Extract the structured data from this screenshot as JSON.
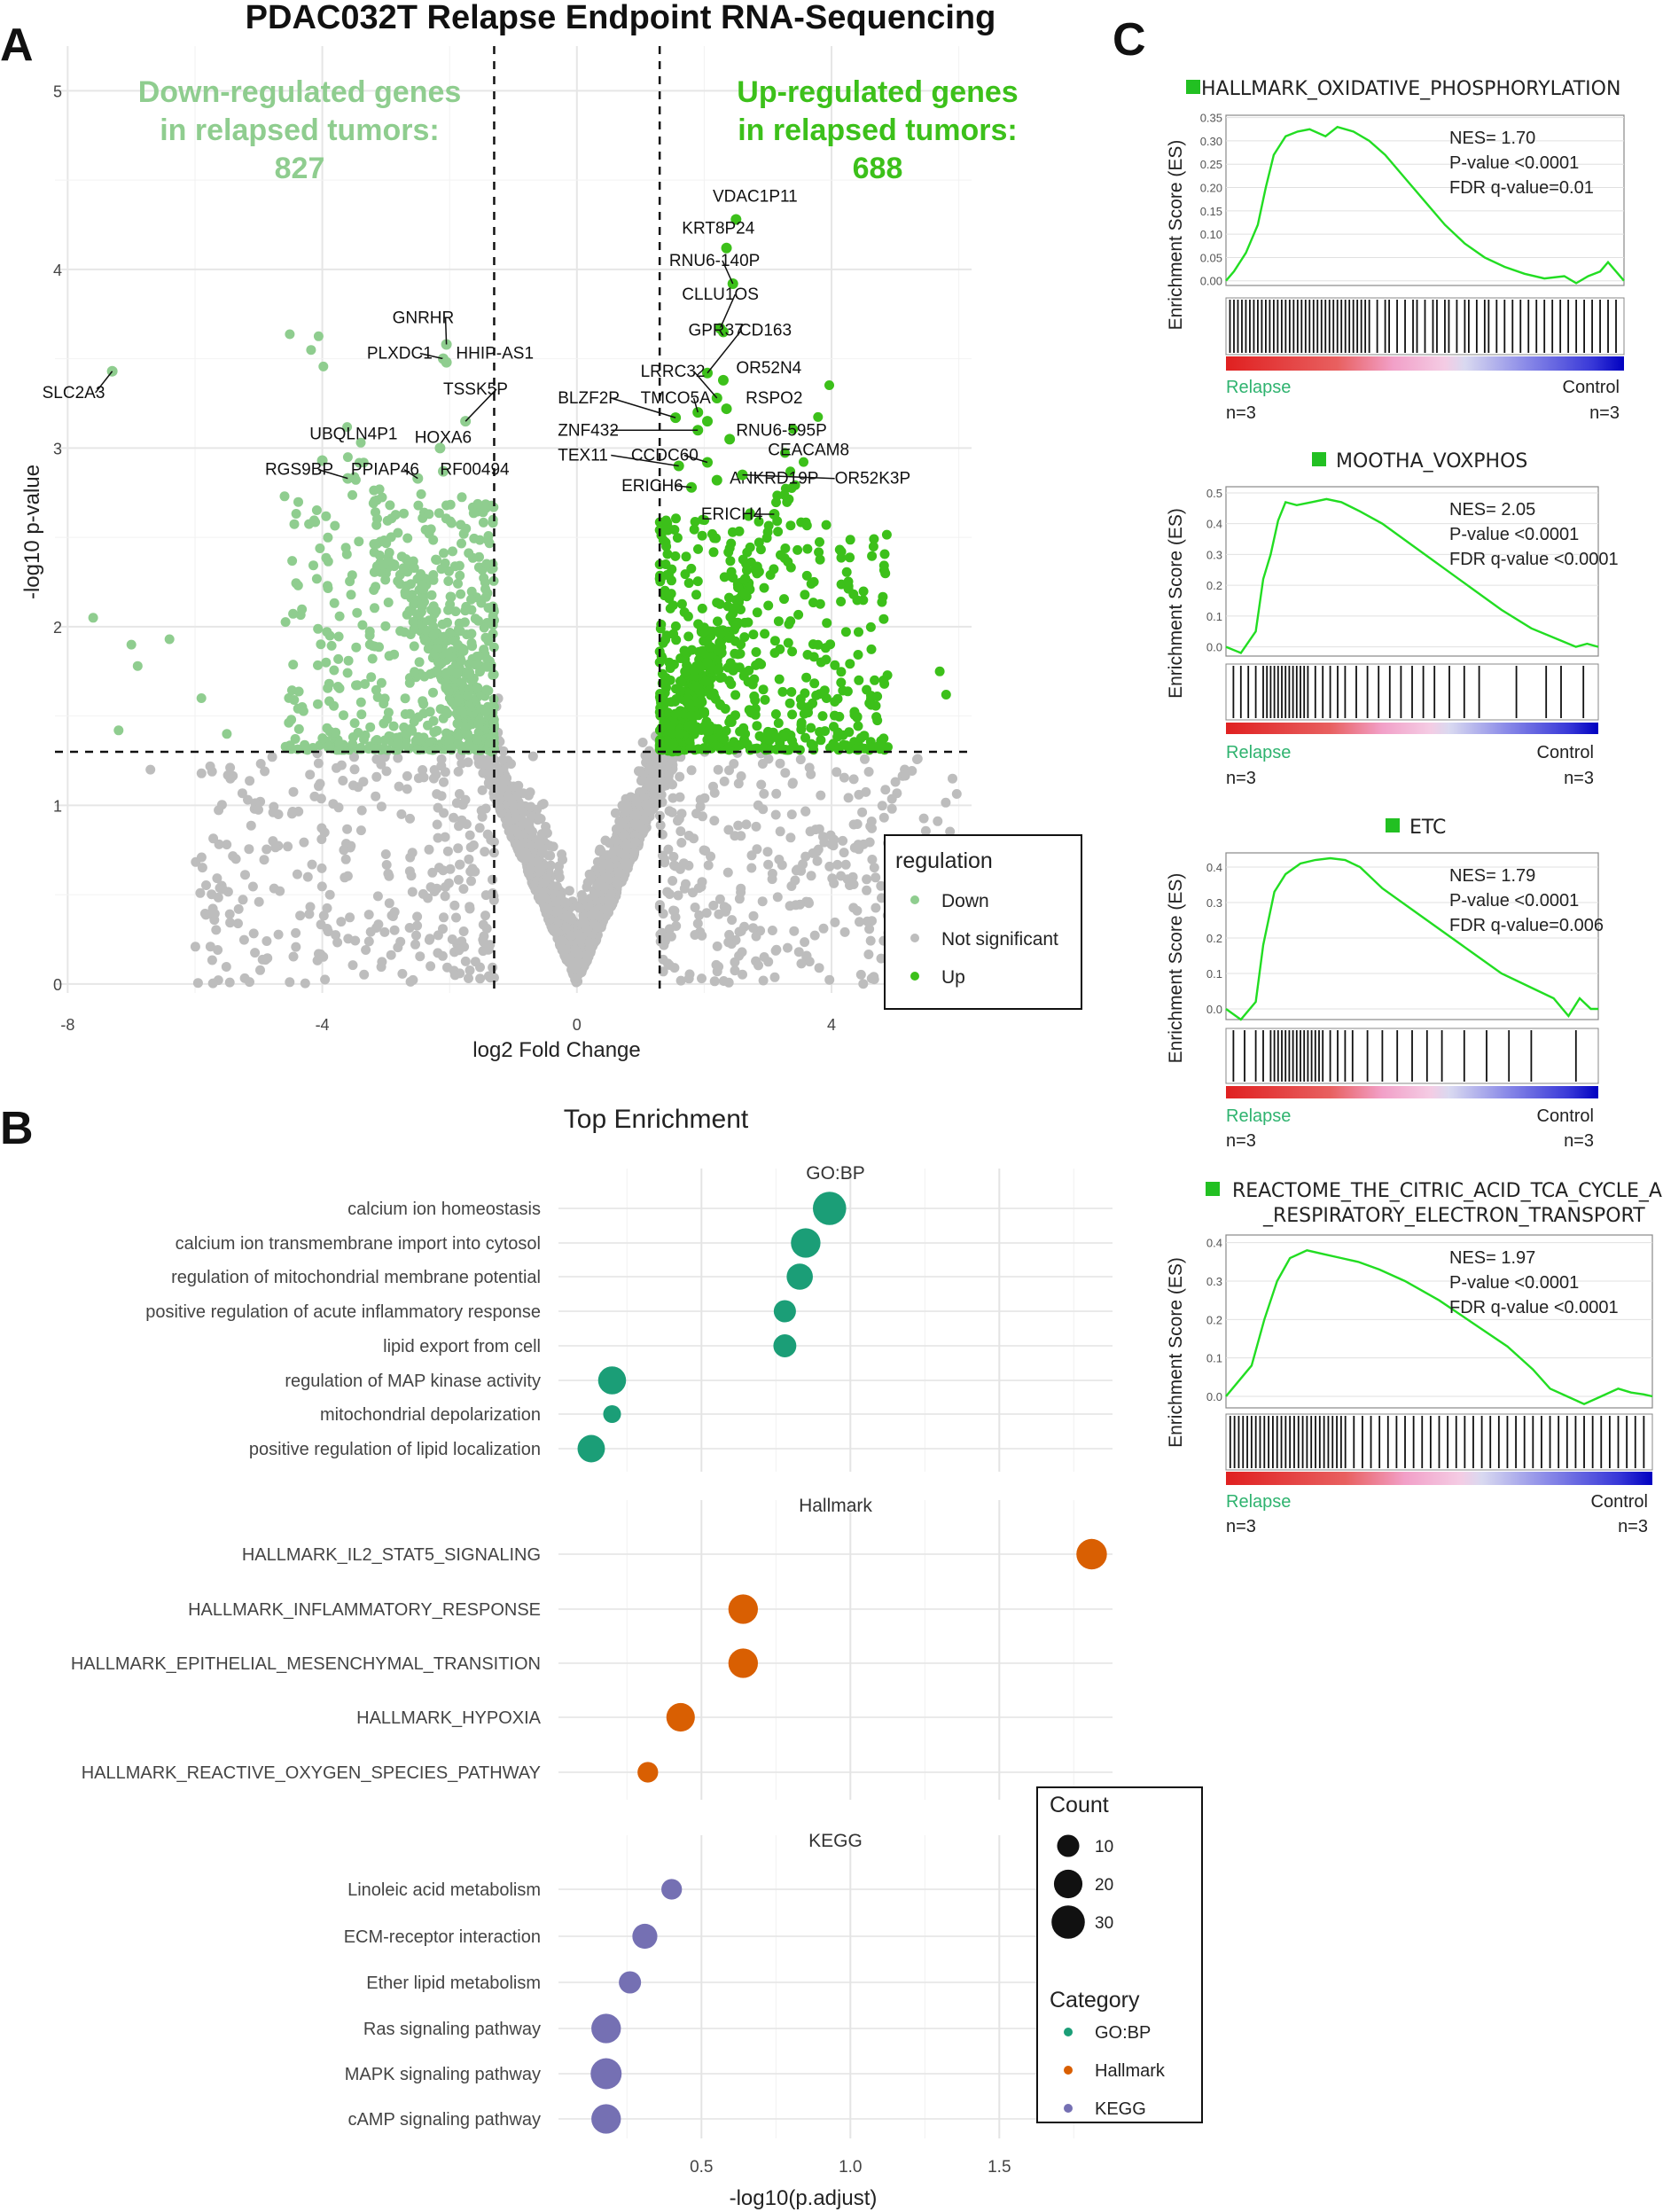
{
  "figure": {
    "main_title": "PDAC032T Relapse Endpoint RNA-Sequencing",
    "panel_labels": [
      "A",
      "B",
      "C"
    ]
  },
  "colors": {
    "down": "#8fcd8f",
    "up": "#3cc01a",
    "ns": "#bdbdbd",
    "gobp": "#1b9e77",
    "hallmark": "#d95f02",
    "kegg": "#7570b3",
    "gsea_curve": "#22dd22",
    "label_green": "#2fb36f"
  },
  "chart_data": [
    {
      "type": "scatter",
      "name": "volcano",
      "xlabel": "log2 Fold Change",
      "ylabel": "-log10 p-value",
      "xlim": [
        -8.2,
        6.2
      ],
      "ylim": [
        -0.05,
        5.25
      ],
      "xticks": [
        -8,
        -4,
        0,
        4
      ],
      "yticks": [
        0,
        1,
        2,
        3,
        4,
        5
      ],
      "thresholds": {
        "log2fc": [
          -1.3,
          1.3
        ],
        "neglog10p": 1.3
      },
      "annotation_down": {
        "line1": "Down-regulated genes",
        "line2": "in relapsed tumors:",
        "count": "827"
      },
      "annotation_up": {
        "line1": "Up-regulated genes",
        "line2": "in relapsed tumors:",
        "count": "688"
      },
      "legend": {
        "title": "regulation",
        "items": [
          {
            "label": "Down",
            "color": "#8fcd8f"
          },
          {
            "label": "Not significant",
            "color": "#bdbdbd"
          },
          {
            "label": "Up",
            "color": "#3cc01a"
          }
        ]
      },
      "labeled_genes": [
        {
          "gene": "VDAC1P11",
          "x": 2.5,
          "y": 4.28,
          "group": "up"
        },
        {
          "gene": "KRT8P24",
          "x": 2.35,
          "y": 4.12,
          "group": "up"
        },
        {
          "gene": "RNU6-140P",
          "x": 2.45,
          "y": 3.92,
          "group": "up"
        },
        {
          "gene": "CLLU1OS",
          "x": 2.25,
          "y": 3.67,
          "group": "up"
        },
        {
          "gene": "CD163",
          "x": 2.3,
          "y": 3.65,
          "group": "up"
        },
        {
          "gene": "GPR37",
          "x": 2.05,
          "y": 3.42,
          "group": "up"
        },
        {
          "gene": "OR52N4",
          "x": 2.3,
          "y": 3.38,
          "group": "up"
        },
        {
          "gene": "LRRC32",
          "x": 2.2,
          "y": 3.28,
          "group": "up"
        },
        {
          "gene": "RSPO2",
          "x": 2.35,
          "y": 3.22,
          "group": "up"
        },
        {
          "gene": "TMCO5A",
          "x": 1.9,
          "y": 3.2,
          "group": "up"
        },
        {
          "gene": "BLZF2P",
          "x": 1.55,
          "y": 3.17,
          "group": "up"
        },
        {
          "gene": "RNU6-595P",
          "x": 2.05,
          "y": 3.15,
          "group": "up"
        },
        {
          "gene": "ZNF432",
          "x": 1.9,
          "y": 3.1,
          "group": "up"
        },
        {
          "gene": "CEACAM8",
          "x": 2.4,
          "y": 3.05,
          "group": "up"
        },
        {
          "gene": "CCDC60",
          "x": 2.05,
          "y": 2.92,
          "group": "up"
        },
        {
          "gene": "TEX11",
          "x": 1.6,
          "y": 2.9,
          "group": "up"
        },
        {
          "gene": "ANKRD19P",
          "x": 2.2,
          "y": 2.82,
          "group": "up"
        },
        {
          "gene": "OR52K3P",
          "x": 2.6,
          "y": 2.85,
          "group": "up"
        },
        {
          "gene": "ERICH6",
          "x": 1.8,
          "y": 2.78,
          "group": "up"
        },
        {
          "gene": "ERICH4",
          "x": 3.1,
          "y": 2.63,
          "group": "up"
        },
        {
          "gene": "SLC2A3",
          "x": -7.3,
          "y": 3.43,
          "group": "down"
        },
        {
          "gene": "GNRHR",
          "x": -2.05,
          "y": 3.58,
          "group": "down"
        },
        {
          "gene": "PLXDC1",
          "x": -2.1,
          "y": 3.5,
          "group": "down"
        },
        {
          "gene": "HHIP-AS1",
          "x": -2.05,
          "y": 3.48,
          "group": "down"
        },
        {
          "gene": "TSSK5P",
          "x": -1.75,
          "y": 3.15,
          "group": "down"
        },
        {
          "gene": "HOXA6",
          "x": -2.15,
          "y": 3.0,
          "group": "down"
        },
        {
          "gene": "UBQLN4P1",
          "x": -4.0,
          "y": 2.93,
          "group": "down"
        },
        {
          "gene": "RF00494",
          "x": -2.1,
          "y": 2.87,
          "group": "down"
        },
        {
          "gene": "RGS9BP",
          "x": -3.6,
          "y": 2.83,
          "group": "down"
        },
        {
          "gene": "PPIAP46",
          "x": -2.5,
          "y": 2.83,
          "group": "down"
        }
      ]
    },
    {
      "type": "scatter",
      "name": "enrichment-dotplot",
      "title": "Top Enrichment",
      "xlabel": "-log10(p.adjust)",
      "xlim": [
        0.02,
        1.88
      ],
      "xticks": [
        0.5,
        1.0,
        1.5
      ],
      "xtick_labels": [
        "0.5",
        "1.0",
        "1.5"
      ],
      "groups": [
        {
          "facet": "GO:BP",
          "color_key": "gobp",
          "terms": [
            {
              "term": "calcium ion homeostasis",
              "x": 0.93,
              "count": 30
            },
            {
              "term": "calcium ion transmembrane import into cytosol",
              "x": 0.85,
              "count": 22
            },
            {
              "term": "regulation of mitochondrial membrane potential",
              "x": 0.83,
              "count": 16
            },
            {
              "term": "positive regulation of acute inflammatory response",
              "x": 0.78,
              "count": 10
            },
            {
              "term": "lipid export from cell",
              "x": 0.78,
              "count": 11
            },
            {
              "term": "regulation of MAP kinase activity",
              "x": 0.2,
              "count": 19
            },
            {
              "term": "mitochondrial depolarization",
              "x": 0.2,
              "count": 5
            },
            {
              "term": "positive regulation of lipid localization",
              "x": 0.13,
              "count": 18
            }
          ]
        },
        {
          "facet": "Hallmark",
          "color_key": "hallmark",
          "terms": [
            {
              "term": "HALLMARK_IL2_STAT5_SIGNALING",
              "x": 1.81,
              "count": 24
            },
            {
              "term": "HALLMARK_INFLAMMATORY_RESPONSE",
              "x": 0.64,
              "count": 22
            },
            {
              "term": "HALLMARK_EPITHELIAL_MESENCHYMAL_TRANSITION",
              "x": 0.64,
              "count": 22
            },
            {
              "term": "HALLMARK_HYPOXIA",
              "x": 0.43,
              "count": 20
            },
            {
              "term": "HALLMARK_REACTIVE_OXYGEN_SPECIES_PATHWAY",
              "x": 0.32,
              "count": 8
            }
          ]
        },
        {
          "facet": "KEGG",
          "color_key": "kegg",
          "terms": [
            {
              "term": "Linoleic acid metabolism",
              "x": 0.4,
              "count": 8
            },
            {
              "term": "ECM-receptor interaction",
              "x": 0.31,
              "count": 14
            },
            {
              "term": "Ether lipid metabolism",
              "x": 0.26,
              "count": 10
            },
            {
              "term": "Ras signaling pathway",
              "x": 0.18,
              "count": 22
            },
            {
              "term": "MAPK signaling pathway",
              "x": 0.18,
              "count": 25
            },
            {
              "term": "cAMP signaling pathway",
              "x": 0.18,
              "count": 22
            }
          ]
        }
      ],
      "size_legend": {
        "title": "Count",
        "items": [
          {
            "label": "10",
            "count": 10
          },
          {
            "label": "20",
            "count": 20
          },
          {
            "label": "30",
            "count": 30
          }
        ]
      },
      "color_legend": {
        "title": "Category",
        "items": [
          {
            "label": "GO:BP",
            "color_key": "gobp"
          },
          {
            "label": "Hallmark",
            "color_key": "hallmark"
          },
          {
            "label": "KEGG",
            "color_key": "kegg"
          }
        ]
      }
    },
    {
      "type": "line",
      "name": "gsea",
      "ylabel": "Enrichment Score (ES)",
      "group_left": "Relapse",
      "group_right": "Control",
      "n_left": "n=3",
      "n_right": "n=3",
      "panels": [
        {
          "title": "HALLMARK_OXIDATIVE_PHOSPHORYLATION",
          "nes": "NES= 1.70",
          "pvalue": "P-value <0.0001",
          "fdr": "FDR q-value=0.01",
          "ylim": [
            -0.01,
            0.355
          ],
          "yticks": [
            0.0,
            0.05,
            0.1,
            0.15,
            0.2,
            0.25,
            0.3,
            0.35
          ],
          "ytick_labels": [
            "0.00",
            "0.05",
            "0.10",
            "0.15",
            "0.20",
            "0.25",
            "0.30",
            "0.35"
          ],
          "es_x": [
            0,
            0.02,
            0.05,
            0.08,
            0.1,
            0.12,
            0.15,
            0.18,
            0.21,
            0.25,
            0.28,
            0.32,
            0.36,
            0.4,
            0.45,
            0.5,
            0.55,
            0.6,
            0.65,
            0.7,
            0.75,
            0.8,
            0.85,
            0.88,
            0.91,
            0.94,
            0.96,
            0.98,
            1.0
          ],
          "es_y": [
            0.0,
            0.02,
            0.06,
            0.12,
            0.2,
            0.27,
            0.31,
            0.32,
            0.325,
            0.31,
            0.33,
            0.32,
            0.3,
            0.27,
            0.22,
            0.17,
            0.12,
            0.08,
            0.05,
            0.03,
            0.015,
            0.005,
            0.01,
            -0.005,
            0.01,
            0.02,
            0.04,
            0.02,
            0.0
          ],
          "hits": [
            0.01,
            0.02,
            0.03,
            0.04,
            0.05,
            0.06,
            0.07,
            0.08,
            0.09,
            0.1,
            0.11,
            0.12,
            0.13,
            0.14,
            0.15,
            0.16,
            0.17,
            0.18,
            0.19,
            0.2,
            0.21,
            0.22,
            0.23,
            0.24,
            0.25,
            0.26,
            0.27,
            0.28,
            0.29,
            0.3,
            0.31,
            0.32,
            0.33,
            0.34,
            0.35,
            0.36,
            0.38,
            0.4,
            0.41,
            0.43,
            0.45,
            0.47,
            0.48,
            0.5,
            0.52,
            0.53,
            0.55,
            0.56,
            0.58,
            0.6,
            0.61,
            0.63,
            0.65,
            0.66,
            0.68,
            0.7,
            0.72,
            0.74,
            0.76,
            0.78,
            0.8,
            0.82,
            0.84,
            0.86,
            0.88,
            0.9,
            0.92,
            0.94,
            0.96,
            0.98
          ]
        },
        {
          "title": "MOOTHA_VOXPHOS",
          "nes": "NES= 2.05",
          "pvalue": "P-value <0.0001",
          "fdr": "FDR q-value <0.0001",
          "ylim": [
            -0.03,
            0.52
          ],
          "yticks": [
            0.0,
            0.1,
            0.2,
            0.3,
            0.4,
            0.5
          ],
          "ytick_labels": [
            "0.0",
            "0.1",
            "0.2",
            "0.3",
            "0.4",
            "0.5"
          ],
          "es_x": [
            0,
            0.04,
            0.08,
            0.1,
            0.12,
            0.14,
            0.16,
            0.19,
            0.23,
            0.27,
            0.31,
            0.36,
            0.42,
            0.5,
            0.58,
            0.66,
            0.74,
            0.82,
            0.9,
            0.94,
            0.97,
            1.0
          ],
          "es_y": [
            0.0,
            -0.02,
            0.05,
            0.22,
            0.3,
            0.41,
            0.47,
            0.46,
            0.47,
            0.48,
            0.47,
            0.44,
            0.4,
            0.33,
            0.26,
            0.19,
            0.12,
            0.06,
            0.02,
            0.0,
            0.01,
            0.0
          ],
          "hits": [
            0.02,
            0.04,
            0.06,
            0.08,
            0.1,
            0.11,
            0.12,
            0.13,
            0.14,
            0.15,
            0.16,
            0.17,
            0.18,
            0.19,
            0.2,
            0.21,
            0.22,
            0.24,
            0.26,
            0.28,
            0.3,
            0.32,
            0.35,
            0.38,
            0.41,
            0.44,
            0.47,
            0.5,
            0.53,
            0.56,
            0.6,
            0.64,
            0.68,
            0.78,
            0.86,
            0.9,
            0.96
          ]
        },
        {
          "title": "ETC",
          "nes": "NES= 1.79",
          "pvalue": "P-value <0.0001",
          "fdr": "FDR q-value=0.006",
          "ylim": [
            -0.03,
            0.44
          ],
          "yticks": [
            0.0,
            0.1,
            0.2,
            0.3,
            0.4
          ],
          "ytick_labels": [
            "0.0",
            "0.1",
            "0.2",
            "0.3",
            "0.4"
          ],
          "es_x": [
            0,
            0.04,
            0.08,
            0.1,
            0.13,
            0.16,
            0.2,
            0.24,
            0.28,
            0.32,
            0.36,
            0.42,
            0.5,
            0.58,
            0.66,
            0.74,
            0.82,
            0.88,
            0.92,
            0.95,
            0.98,
            1.0
          ],
          "es_y": [
            0.0,
            -0.03,
            0.02,
            0.18,
            0.33,
            0.38,
            0.41,
            0.42,
            0.425,
            0.42,
            0.4,
            0.34,
            0.28,
            0.22,
            0.16,
            0.1,
            0.06,
            0.03,
            -0.02,
            0.03,
            0.0,
            0.0
          ],
          "hits": [
            0.02,
            0.05,
            0.08,
            0.1,
            0.12,
            0.13,
            0.14,
            0.15,
            0.16,
            0.17,
            0.18,
            0.19,
            0.2,
            0.21,
            0.22,
            0.23,
            0.24,
            0.25,
            0.26,
            0.28,
            0.3,
            0.32,
            0.34,
            0.38,
            0.42,
            0.46,
            0.5,
            0.54,
            0.58,
            0.64,
            0.7,
            0.76,
            0.82,
            0.94
          ]
        },
        {
          "title": "REACTOME_THE_CITRIC_ACID_TCA_CYCLE_AND",
          "title_line2": "_RESPIRATORY_ELECTRON_TRANSPORT",
          "nes": "NES= 1.97",
          "pvalue": "P-value <0.0001",
          "fdr": "FDR q-value <0.0001",
          "ylim": [
            -0.03,
            0.42
          ],
          "yticks": [
            0.0,
            0.1,
            0.2,
            0.3,
            0.4
          ],
          "ytick_labels": [
            "0.0",
            "0.1",
            "0.2",
            "0.3",
            "0.4"
          ],
          "es_x": [
            0,
            0.03,
            0.06,
            0.09,
            0.12,
            0.15,
            0.19,
            0.23,
            0.27,
            0.31,
            0.36,
            0.42,
            0.5,
            0.58,
            0.66,
            0.72,
            0.76,
            0.8,
            0.84,
            0.88,
            0.92,
            0.95,
            0.98,
            1.0
          ],
          "es_y": [
            0.0,
            0.04,
            0.08,
            0.2,
            0.3,
            0.36,
            0.38,
            0.37,
            0.36,
            0.35,
            0.33,
            0.3,
            0.25,
            0.19,
            0.13,
            0.07,
            0.02,
            0.0,
            -0.02,
            0.0,
            0.02,
            0.01,
            0.005,
            0.0
          ],
          "hits": [
            0.01,
            0.02,
            0.03,
            0.04,
            0.05,
            0.06,
            0.07,
            0.08,
            0.09,
            0.1,
            0.11,
            0.12,
            0.13,
            0.14,
            0.15,
            0.16,
            0.17,
            0.18,
            0.19,
            0.2,
            0.21,
            0.22,
            0.23,
            0.24,
            0.25,
            0.26,
            0.27,
            0.28,
            0.3,
            0.32,
            0.34,
            0.36,
            0.38,
            0.4,
            0.42,
            0.44,
            0.46,
            0.48,
            0.5,
            0.52,
            0.54,
            0.56,
            0.58,
            0.6,
            0.62,
            0.64,
            0.66,
            0.68,
            0.7,
            0.72,
            0.74,
            0.76,
            0.78,
            0.8,
            0.82,
            0.84,
            0.86,
            0.88,
            0.9,
            0.92,
            0.94,
            0.96,
            0.98
          ]
        }
      ]
    }
  ]
}
